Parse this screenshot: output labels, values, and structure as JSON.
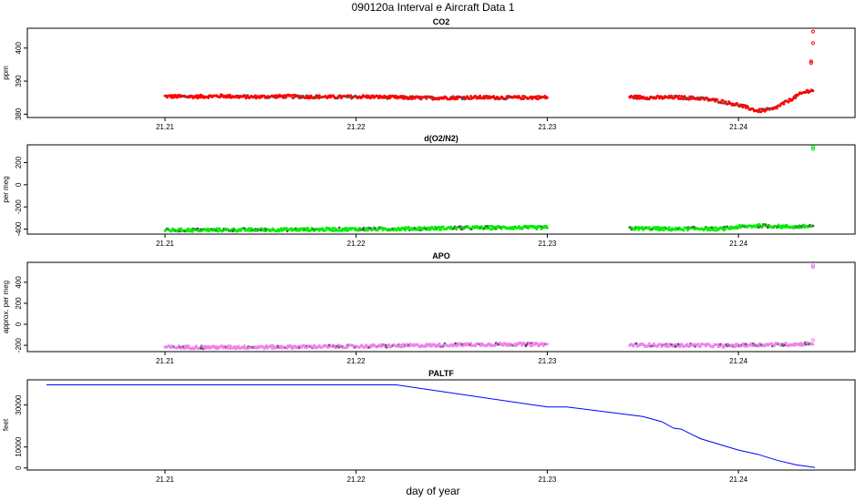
{
  "figure": {
    "title": "090120a   Interval e Aircraft Data 1",
    "xlabel": "day of year"
  },
  "chart_data": [
    {
      "type": "scatter",
      "title": "CO2",
      "ylabel": "ppm",
      "x_ticks": [
        21.21,
        21.22,
        21.23,
        21.24
      ],
      "x_tick_labels": [
        "21.21",
        "21.22",
        "21.23",
        "21.24"
      ],
      "xlim": [
        21.2028,
        21.2461
      ],
      "y_ticks": [
        380,
        390,
        400
      ],
      "y_tick_labels": [
        "380",
        "390",
        "400"
      ],
      "ylim": [
        379,
        406
      ],
      "color": "#ff0000",
      "series": [
        {
          "segments": [
            {
              "x": [
                21.21,
                21.2115,
                21.213,
                21.2145,
                21.216,
                21.2175,
                21.219,
                21.2205,
                21.222,
                21.2235,
                21.225,
                21.2265,
                21.228,
                21.23
              ],
              "y": [
                385.4,
                385.3,
                385.5,
                385.2,
                385.4,
                385.3,
                385.2,
                385.3,
                385.1,
                384.9,
                385.0,
                385.1,
                385.0,
                385.1
              ]
            },
            {
              "x": [
                21.2343,
                21.2355,
                21.2367,
                21.238,
                21.239,
                21.24,
                21.241,
                21.2418,
                21.2426,
                21.2432,
                21.2436,
                21.2439
              ],
              "y": [
                385.2,
                385.0,
                385.1,
                384.8,
                384.0,
                382.8,
                381.0,
                381.5,
                384.0,
                386.0,
                387.0,
                387.2
              ]
            }
          ],
          "outliers": {
            "x": [
              21.2438,
              21.2438,
              21.2439,
              21.2439
            ],
            "y": [
              395.5,
              396.0,
              401.5,
              405.0
            ]
          }
        }
      ]
    },
    {
      "type": "scatter",
      "title": "d(O2/N2)",
      "ylabel": "per meg",
      "x_ticks": [
        21.21,
        21.22,
        21.23,
        21.24
      ],
      "x_tick_labels": [
        "21.21",
        "21.22",
        "21.23",
        "21.24"
      ],
      "xlim": [
        21.2028,
        21.2461
      ],
      "y_ticks": [
        -400,
        -200,
        0,
        200
      ],
      "y_tick_labels": [
        "-400",
        "-200",
        "0",
        "200"
      ],
      "ylim": [
        -445,
        360
      ],
      "color": "#00ee00",
      "series": [
        {
          "segments": [
            {
              "x": [
                21.21,
                21.212,
                21.214,
                21.216,
                21.218,
                21.22,
                21.222,
                21.224,
                21.226,
                21.228,
                21.23
              ],
              "y": [
                -410,
                -408,
                -407,
                -405,
                -403,
                -401,
                -398,
                -393,
                -388,
                -386,
                -387
              ]
            },
            {
              "x": [
                21.2343,
                21.2355,
                21.2367,
                21.238,
                21.239,
                21.24,
                21.241,
                21.242,
                21.243,
                21.2439
              ],
              "y": [
                -393,
                -395,
                -400,
                -394,
                -400,
                -380,
                -370,
                -375,
                -380,
                -372
              ]
            }
          ],
          "outliers": {
            "x": [
              21.2439,
              21.2439
            ],
            "y": [
              322,
              340
            ]
          }
        }
      ]
    },
    {
      "type": "scatter",
      "title": "APO",
      "ylabel": "approx. per meg",
      "x_ticks": [
        21.21,
        21.22,
        21.23,
        21.24
      ],
      "x_tick_labels": [
        "21.21",
        "21.22",
        "21.23",
        "21.24"
      ],
      "xlim": [
        21.2028,
        21.2461
      ],
      "y_ticks": [
        -200,
        0,
        200,
        400
      ],
      "y_tick_labels": [
        "-200",
        "0",
        "200",
        "400"
      ],
      "ylim": [
        -260,
        590
      ],
      "color": "#ee82ee",
      "series": [
        {
          "segments": [
            {
              "x": [
                21.21,
                21.212,
                21.214,
                21.216,
                21.218,
                21.22,
                21.222,
                21.224,
                21.226,
                21.228,
                21.23
              ],
              "y": [
                -218,
                -219,
                -218,
                -216,
                -213,
                -210,
                -205,
                -200,
                -193,
                -190,
                -192
              ]
            },
            {
              "x": [
                21.2343,
                21.2355,
                21.2367,
                21.238,
                21.239,
                21.24,
                21.241,
                21.242,
                21.243,
                21.2439
              ],
              "y": [
                -197,
                -198,
                -203,
                -198,
                -205,
                -200,
                -195,
                -193,
                -190,
                -183
              ]
            }
          ],
          "outliers": {
            "x": [
              21.2439,
              21.2439,
              21.2439
            ],
            "y": [
              -150,
              545,
              560
            ]
          }
        }
      ]
    },
    {
      "type": "line",
      "title": "PALTF",
      "ylabel": "feet",
      "x_ticks": [
        21.21,
        21.22,
        21.23,
        21.24
      ],
      "x_tick_labels": [
        "21.21",
        "21.22",
        "21.23",
        "21.24"
      ],
      "xlim": [
        21.2028,
        21.2461
      ],
      "y_ticks": [
        0,
        10000,
        30000
      ],
      "y_tick_labels": [
        "0",
        "10000",
        "30000"
      ],
      "ylim": [
        -1000,
        42000
      ],
      "color": "#0000ff",
      "series": [
        {
          "segments": [
            {
              "x": [
                21.2038,
                21.21,
                21.215,
                21.22,
                21.2221,
                21.23,
                21.231,
                21.235,
                21.236,
                21.2366,
                21.237,
                21.238,
                21.24,
                21.241,
                21.242,
                21.243,
                21.244
              ],
              "y": [
                39600,
                39600,
                39600,
                39600,
                39600,
                29100,
                29100,
                24500,
                22000,
                19000,
                18500,
                14000,
                8500,
                6500,
                3700,
                1500,
                200
              ]
            }
          ]
        }
      ]
    }
  ]
}
